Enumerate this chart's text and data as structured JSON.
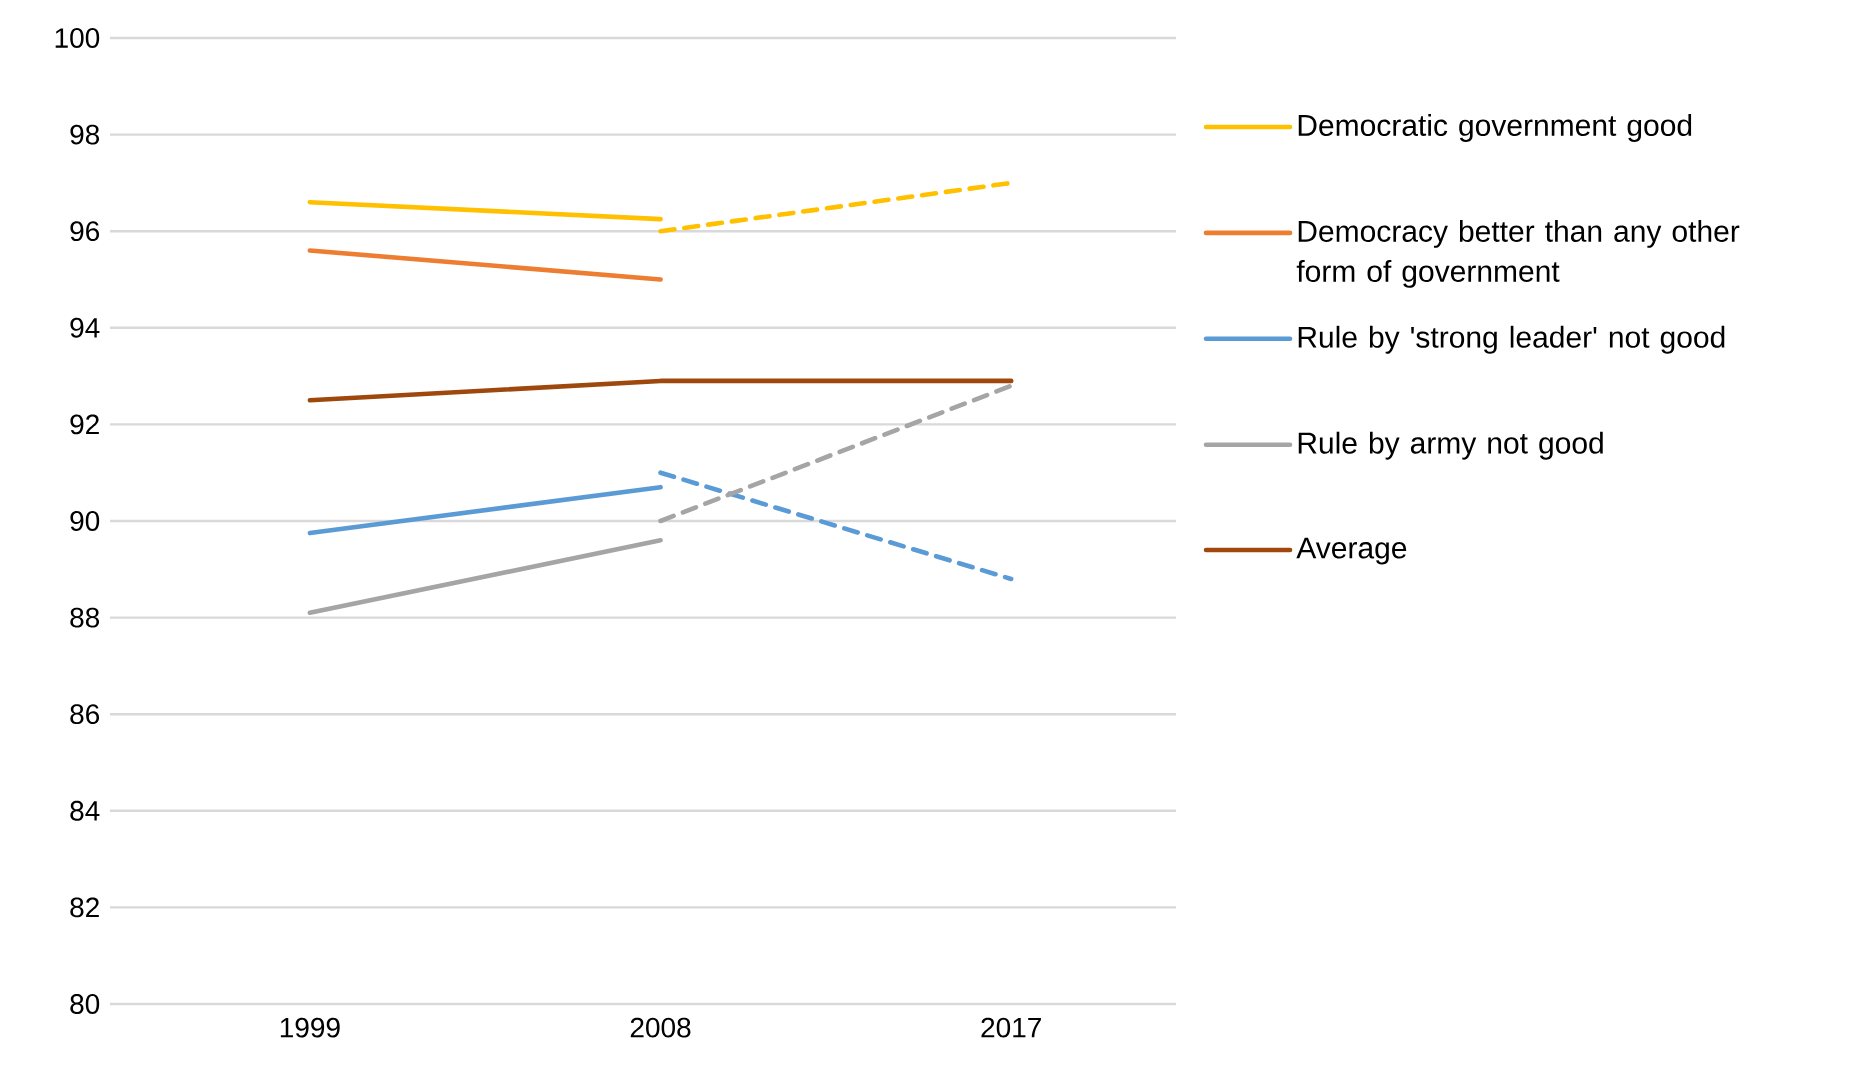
{
  "chart_data": {
    "type": "line",
    "categories": [
      "1999",
      "2008",
      "2017"
    ],
    "ylim": [
      80,
      100
    ],
    "yticks": [
      80,
      82,
      84,
      86,
      88,
      90,
      92,
      94,
      96,
      98,
      100
    ],
    "grid": "y",
    "legend": "right",
    "series": [
      {
        "name": "Democratic government good",
        "color": "#ffc000",
        "line_style": "solid",
        "values": [
          96.6,
          96.25,
          null
        ]
      },
      {
        "name": "Democracy better than any other form of government",
        "color": "#ed7d31",
        "line_style": "solid",
        "values": [
          95.6,
          95.0,
          null
        ]
      },
      {
        "name": "Rule by 'strong leader' not good",
        "color": "#5b9bd5",
        "line_style": "solid",
        "values": [
          89.75,
          90.7,
          null
        ]
      },
      {
        "name": "Rule by army not good",
        "color": "#a5a5a5",
        "line_style": "solid",
        "values": [
          88.1,
          89.6,
          null
        ]
      },
      {
        "name": "Average",
        "color": "#9e480e",
        "line_style": "solid",
        "values": [
          92.5,
          92.9,
          92.9
        ]
      },
      {
        "color": "#ffc000",
        "line_style": "dashed",
        "values": [
          null,
          96.0,
          97.0
        ]
      },
      {
        "color": "#5b9bd5",
        "line_style": "dashed",
        "values": [
          null,
          91.0,
          88.8
        ]
      },
      {
        "color": "#a5a5a5",
        "line_style": "dashed",
        "values": [
          null,
          90.0,
          92.8
        ]
      }
    ]
  }
}
